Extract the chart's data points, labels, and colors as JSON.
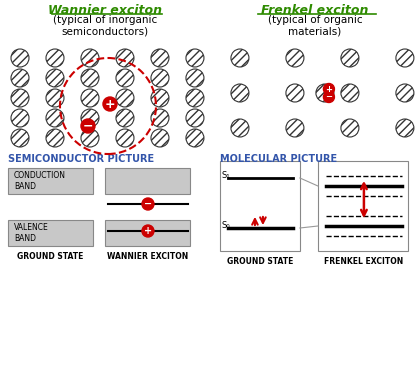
{
  "title_wannier": "Wannier exciton",
  "subtitle_wannier": "(typical of inorganic\nsemiconductors)",
  "title_frenkel": "Frenkel exciton",
  "subtitle_frenkel": "(typical of organic\nmaterials)",
  "section_semi": "SEMICONDUCTOR PICTURE",
  "section_mol": "MOLECULAR PICTURE",
  "label_gs_left": "GROUND STATE",
  "label_wannier": "WANNIER EXCITON",
  "label_gs_right": "GROUND STATE",
  "label_frenkel": "FRENKEL EXCITON",
  "label_cond": "CONDUCTION\nBAND",
  "label_val": "VALENCE\nBAND",
  "label_s1": "S₁",
  "label_s0": "S₀",
  "green_color": "#2e8b00",
  "red_color": "#cc0000",
  "blue_color": "#3355aa",
  "bg_color": "#f5f5f5"
}
